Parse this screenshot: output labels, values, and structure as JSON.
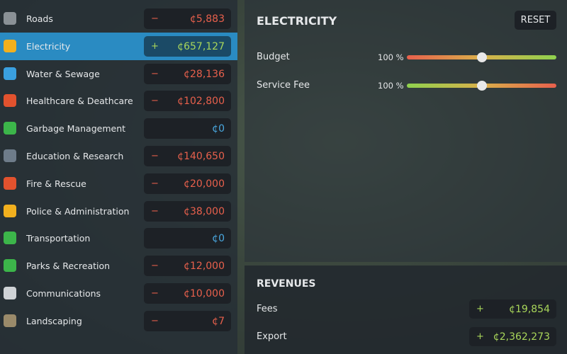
{
  "services": [
    {
      "name": "Roads",
      "sign": "−",
      "amount": "¢5,883",
      "state": "negative"
    },
    {
      "name": "Electricity",
      "sign": "+",
      "amount": "¢657,127",
      "state": "positive",
      "selected": true
    },
    {
      "name": "Water & Sewage",
      "sign": "−",
      "amount": "¢28,136",
      "state": "negative"
    },
    {
      "name": "Healthcare & Deathcare",
      "sign": "−",
      "amount": "¢102,800",
      "state": "negative"
    },
    {
      "name": "Garbage Management",
      "sign": null,
      "amount": "¢0",
      "state": "zero"
    },
    {
      "name": "Education & Research",
      "sign": "−",
      "amount": "¢140,650",
      "state": "negative"
    },
    {
      "name": "Fire & Rescue",
      "sign": "−",
      "amount": "¢20,000",
      "state": "negative"
    },
    {
      "name": "Police & Administration",
      "sign": "−",
      "amount": "¢38,000",
      "state": "negative"
    },
    {
      "name": "Transportation",
      "sign": null,
      "amount": "¢0",
      "state": "zero"
    },
    {
      "name": "Parks & Recreation",
      "sign": "−",
      "amount": "¢12,000",
      "state": "negative"
    },
    {
      "name": "Communications",
      "sign": "−",
      "amount": "¢10,000",
      "state": "negative"
    },
    {
      "name": "Landscaping",
      "sign": "−",
      "amount": "¢7",
      "state": "negative"
    }
  ],
  "detail": {
    "title": "ELECTRICITY",
    "reset": "RESET",
    "sliders": [
      {
        "label": "Budget",
        "value_label": "100 %",
        "gradient": "red-to-green"
      },
      {
        "label": "Service Fee",
        "value_label": "100 %",
        "gradient": "green-to-red"
      }
    ]
  },
  "revenues": {
    "title": "REVENUES",
    "rows": [
      {
        "label": "Fees",
        "sign": "+",
        "amount": "¢19,854"
      },
      {
        "label": "Export",
        "sign": "+",
        "amount": "¢2,362,273"
      }
    ]
  }
}
